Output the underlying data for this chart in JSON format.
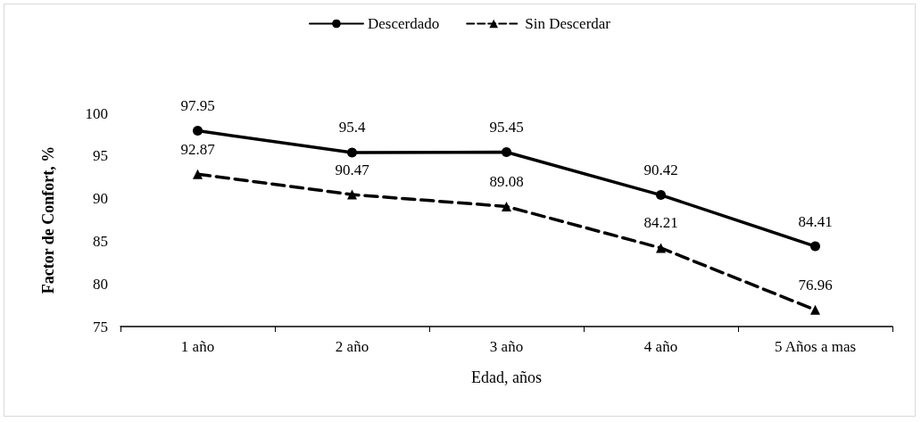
{
  "chart_data": {
    "type": "line",
    "xlabel": "Edad, años",
    "ylabel": "Factor de Confort, %",
    "categories": [
      "1 año",
      "2 año",
      "3 año",
      "4 año",
      "5 Años a mas"
    ],
    "series": [
      {
        "name": "Descerdado",
        "color": "#000000",
        "values": [
          97.95,
          95.4,
          95.45,
          90.42,
          84.41
        ],
        "marker": "circle",
        "line_style": "solid"
      },
      {
        "name": "Sin Descerdar",
        "color": "#000000",
        "values": [
          92.87,
          90.47,
          89.08,
          84.21,
          76.96
        ],
        "marker": "triangle",
        "line_style": "dashed"
      }
    ],
    "ylim": [
      75,
      100
    ],
    "yticks": [
      75,
      80,
      85,
      90,
      95,
      100
    ],
    "grid": false,
    "legend": "top",
    "data_labels": true
  }
}
